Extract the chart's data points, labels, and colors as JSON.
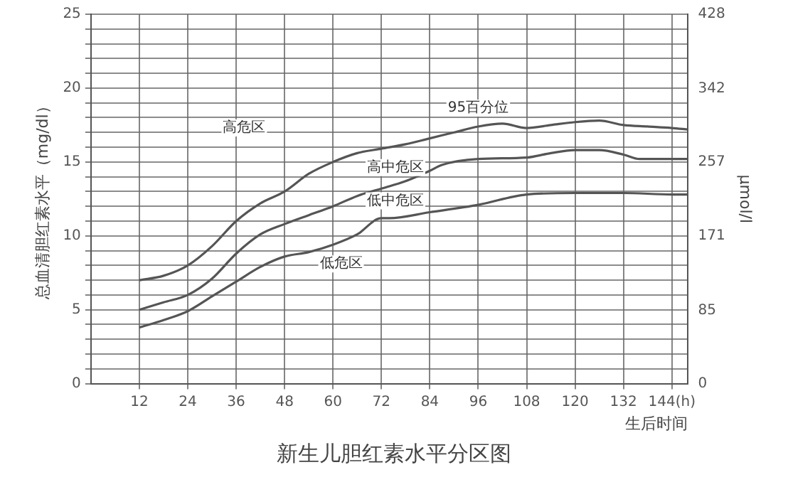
{
  "chart_data": {
    "type": "line",
    "title": "新生儿胆红素水平分区图",
    "xlabel": "生后时间",
    "ylabel": "总血清胆红素水平（mg/dl）",
    "y2label": "μmol/l",
    "series": [
      {
        "name": "95百分位",
        "color": "#555555",
        "x": [
          12,
          18,
          24,
          30,
          36,
          42,
          48,
          54,
          60,
          66,
          72,
          78,
          84,
          90,
          96,
          102,
          108,
          114,
          120,
          126,
          132,
          138,
          144,
          148
        ],
        "values": [
          7.0,
          7.3,
          8.0,
          9.3,
          11.0,
          12.2,
          13.0,
          14.2,
          15.0,
          15.6,
          15.9,
          16.2,
          16.6,
          17.0,
          17.4,
          17.6,
          17.3,
          17.5,
          17.7,
          17.8,
          17.5,
          17.4,
          17.3,
          17.2
        ]
      },
      {
        "color": "#555555",
        "x": [
          12,
          18,
          24,
          30,
          36,
          42,
          48,
          54,
          60,
          66,
          72,
          78,
          84,
          87,
          96,
          108,
          114,
          120,
          126,
          132,
          136,
          144,
          148
        ],
        "values": [
          5.0,
          5.5,
          6.0,
          7.1,
          8.8,
          10.1,
          10.8,
          11.4,
          12.0,
          12.7,
          13.2,
          13.7,
          14.4,
          14.8,
          15.2,
          15.3,
          15.6,
          15.8,
          15.8,
          15.5,
          15.2,
          15.2,
          15.2
        ]
      },
      {
        "color": "#555555",
        "x": [
          12,
          18,
          24,
          30,
          36,
          42,
          48,
          54,
          60,
          66,
          72,
          74,
          84,
          96,
          108,
          120,
          132,
          144,
          148
        ],
        "values": [
          3.8,
          4.3,
          4.9,
          5.9,
          6.9,
          7.9,
          8.6,
          8.9,
          9.4,
          10.1,
          11.2,
          11.2,
          11.6,
          12.1,
          12.8,
          12.9,
          12.9,
          12.8,
          12.8
        ]
      }
    ],
    "xlim": [
      0,
      148
    ],
    "xticks": [
      12,
      24,
      36,
      48,
      60,
      72,
      84,
      96,
      108,
      120,
      132,
      {
        "value": 144,
        "label": "144(h)"
      }
    ],
    "ylim": [
      0,
      25
    ],
    "yticks": [
      0,
      {
        "value": 1,
        "label": null
      },
      {
        "value": 2,
        "label": null
      },
      {
        "value": 3,
        "label": null
      },
      {
        "value": 4,
        "label": null
      },
      5,
      {
        "value": 6,
        "label": null
      },
      {
        "value": 7,
        "label": null
      },
      {
        "value": 8,
        "label": null
      },
      {
        "value": 9,
        "label": null
      },
      10,
      {
        "value": 11,
        "label": null
      },
      {
        "value": 12,
        "label": null
      },
      {
        "value": 13,
        "label": null
      },
      {
        "value": 14,
        "label": null
      },
      15,
      {
        "value": 16,
        "label": null
      },
      {
        "value": 17,
        "label": null
      },
      {
        "value": 18,
        "label": null
      },
      {
        "value": 19,
        "label": null
      },
      20,
      {
        "value": 21,
        "label": null
      },
      {
        "value": 22,
        "label": null
      },
      {
        "value": 23,
        "label": null
      },
      {
        "value": 24,
        "label": null
      },
      25
    ],
    "y2lim": [
      0,
      428
    ],
    "y2ticks": [
      0,
      85,
      171,
      257,
      342,
      428
    ],
    "annotations": [
      {
        "text": "高危区",
        "x": 38,
        "y": 17.3
      },
      "高中危区",
      "低中危区",
      {
        "text": "低危区",
        "x": 62,
        "y": 8.1
      }
    ],
    "grid": true,
    "legend": false,
    "marker": "none",
    "line_style": "solid"
  }
}
